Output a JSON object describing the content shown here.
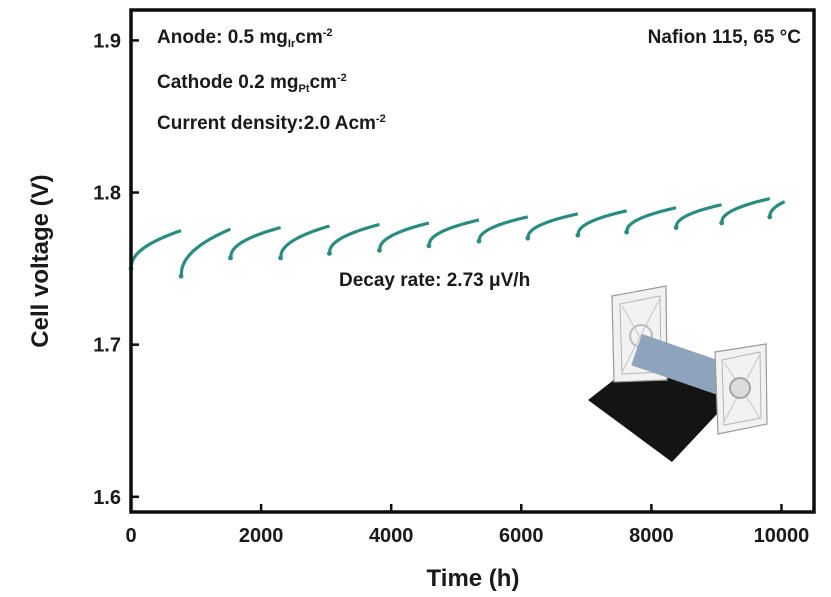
{
  "chart_data": {
    "type": "line",
    "xlabel": "Time (h)",
    "ylabel": "Cell voltage (V)",
    "xlim": [
      0,
      10500
    ],
    "ylim": [
      1.59,
      1.92
    ],
    "xticks": [
      0,
      2000,
      4000,
      6000,
      8000,
      10000
    ],
    "yticks": [
      1.6,
      1.7,
      1.8,
      1.9
    ],
    "xtick_labels": [
      "0",
      "2000",
      "4000",
      "6000",
      "8000",
      "10000"
    ],
    "ytick_labels": [
      "1.6",
      "1.7",
      "1.8",
      "1.9"
    ],
    "series": [
      {
        "color": "#2a8c80",
        "segments": [
          {
            "x_start": 0,
            "x_end": 770,
            "v_start": 1.75,
            "v_end": 1.775
          },
          {
            "x_start": 770,
            "x_end": 1530,
            "v_start": 1.745,
            "v_end": 1.776
          },
          {
            "x_start": 1530,
            "x_end": 2300,
            "v_start": 1.757,
            "v_end": 1.777
          },
          {
            "x_start": 2300,
            "x_end": 3050,
            "v_start": 1.757,
            "v_end": 1.778
          },
          {
            "x_start": 3050,
            "x_end": 3820,
            "v_start": 1.76,
            "v_end": 1.779
          },
          {
            "x_start": 3820,
            "x_end": 4580,
            "v_start": 1.762,
            "v_end": 1.78
          },
          {
            "x_start": 4580,
            "x_end": 5350,
            "v_start": 1.765,
            "v_end": 1.782
          },
          {
            "x_start": 5350,
            "x_end": 6100,
            "v_start": 1.768,
            "v_end": 1.784
          },
          {
            "x_start": 6100,
            "x_end": 6870,
            "v_start": 1.77,
            "v_end": 1.786
          },
          {
            "x_start": 6870,
            "x_end": 7620,
            "v_start": 1.772,
            "v_end": 1.788
          },
          {
            "x_start": 7620,
            "x_end": 8380,
            "v_start": 1.774,
            "v_end": 1.79
          },
          {
            "x_start": 8380,
            "x_end": 9080,
            "v_start": 1.777,
            "v_end": 1.792
          },
          {
            "x_start": 9080,
            "x_end": 9820,
            "v_start": 1.78,
            "v_end": 1.796
          },
          {
            "x_start": 9820,
            "x_end": 10050,
            "v_start": 1.784,
            "v_end": 1.794
          }
        ]
      }
    ],
    "annotations": {
      "anode_prefix": "Anode: 0.5 mg",
      "anode_sub": "Ir",
      "anode_unit": "cm",
      "anode_sup": "-2",
      "cathode_prefix": "Cathode 0.2 mg",
      "cathode_sub": "Pt",
      "cathode_unit": "cm",
      "cathode_sup": "-2",
      "current_prefix": "Current density:2.0 Acm",
      "current_sup": "-2",
      "membrane": "Nafion 115, 65 °C",
      "decay_rate": "Decay rate: 2.73 μV/h"
    },
    "grid": false,
    "legend": "none"
  }
}
